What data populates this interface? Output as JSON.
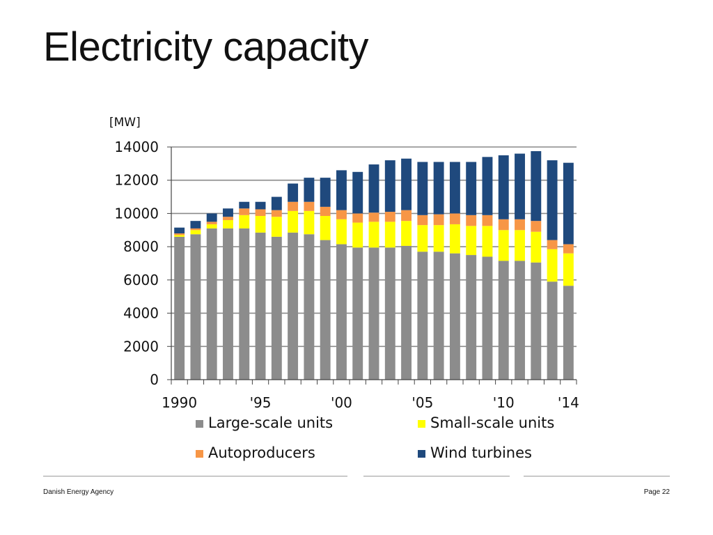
{
  "slide": {
    "title": "Electricity capacity",
    "footer_left": "Danish Energy Agency",
    "footer_right": "Page 22"
  },
  "chart_data": {
    "type": "bar",
    "stacked": true,
    "title": "",
    "ylabel": "[MW]",
    "xlabel": "",
    "ylim": [
      0,
      14000
    ],
    "yticks": [
      0,
      2000,
      4000,
      6000,
      8000,
      10000,
      12000,
      14000
    ],
    "grid": true,
    "legend_position": "bottom",
    "x": [
      1990,
      1991,
      1992,
      1993,
      1994,
      1995,
      1996,
      1997,
      1998,
      1999,
      2000,
      2001,
      2002,
      2003,
      2004,
      2005,
      2006,
      2007,
      2008,
      2009,
      2010,
      2011,
      2012,
      2013,
      2014
    ],
    "xtick_labels": [
      {
        "year": 1990,
        "label": "1990"
      },
      {
        "year": 1995,
        "label": "'95"
      },
      {
        "year": 2000,
        "label": "'00"
      },
      {
        "year": 2005,
        "label": "'05"
      },
      {
        "year": 2010,
        "label": "'10"
      },
      {
        "year": 2014,
        "label": "'14"
      }
    ],
    "series": [
      {
        "name": "Large-scale units",
        "color": "#8c8c8c",
        "values": [
          8600,
          8750,
          9100,
          9100,
          9100,
          8850,
          8600,
          8850,
          8750,
          8400,
          8150,
          7950,
          7950,
          7950,
          8050,
          7700,
          7700,
          7600,
          7500,
          7400,
          7150,
          7150,
          7050,
          5900,
          5650
        ]
      },
      {
        "name": "Small-scale units",
        "color": "#ffff00",
        "values": [
          100,
          250,
          250,
          500,
          800,
          1000,
          1200,
          1300,
          1400,
          1450,
          1500,
          1500,
          1550,
          1550,
          1500,
          1600,
          1600,
          1750,
          1750,
          1850,
          1850,
          1850,
          1850,
          1950,
          1950
        ]
      },
      {
        "name": "Autoproducers",
        "color": "#f79646",
        "values": [
          100,
          100,
          150,
          200,
          400,
          400,
          400,
          550,
          550,
          550,
          550,
          550,
          550,
          600,
          650,
          600,
          650,
          650,
          650,
          650,
          650,
          650,
          650,
          550,
          550
        ]
      },
      {
        "name": "Wind turbines",
        "color": "#1f497d",
        "values": [
          350,
          450,
          500,
          500,
          400,
          450,
          800,
          1100,
          1450,
          1750,
          2400,
          2500,
          2900,
          3100,
          3100,
          3200,
          3150,
          3100,
          3200,
          3500,
          3850,
          3950,
          4200,
          4800,
          4900
        ]
      }
    ]
  }
}
